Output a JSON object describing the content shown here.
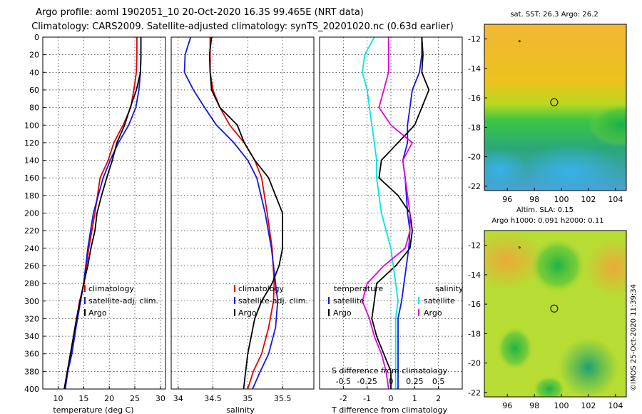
{
  "header": {
    "line1": "Argo profile: aoml 1902051_10 20-Oct-2020 16.3S 99.465E (NRT data)",
    "line2": "Climatology: CARS2009. Satellite-adjusted climatology: synTS_20201020.nc (0.63d earlier)"
  },
  "colors": {
    "climatology": "#e60000",
    "satellite": "#1515e6",
    "argo": "#000000",
    "sal_satellite": "#00e5e5",
    "sal_argo": "#e000e0"
  },
  "chart_data": [
    {
      "type": "line",
      "panel": "temperature",
      "xlabel": "temperature (deg C)",
      "ylabel": "",
      "xlim": [
        7,
        31
      ],
      "ylim": [
        400,
        0
      ],
      "xticks": [
        10,
        15,
        20,
        25,
        30
      ],
      "yticks": [
        0,
        20,
        40,
        60,
        80,
        100,
        120,
        140,
        160,
        180,
        200,
        220,
        240,
        260,
        280,
        300,
        320,
        340,
        360,
        380,
        400
      ],
      "grid": true,
      "legend": {
        "position": "lower-middle",
        "entries": [
          "climatology",
          "satellite-adj. clim.",
          "Argo"
        ]
      },
      "series": [
        {
          "name": "climatology",
          "color": "#e60000",
          "x": [
            25.4,
            25.4,
            25.3,
            24.8,
            24.2,
            22.7,
            20.9,
            19.8,
            18.2,
            17.2,
            16.0,
            15.1,
            14.2,
            13.3,
            12.5,
            11.8,
            11.2
          ],
          "y": [
            0,
            20,
            40,
            60,
            80,
            100,
            120,
            140,
            160,
            200,
            240,
            280,
            300,
            330,
            360,
            380,
            400
          ]
        },
        {
          "name": "satellite-adj. clim.",
          "color": "#1515e6",
          "x": [
            26.2,
            26.2,
            26.1,
            25.8,
            25.2,
            23.8,
            21.8,
            20.2,
            18.8,
            16.9,
            15.8,
            15.0,
            14.4,
            13.5,
            12.7,
            11.9,
            11.4
          ],
          "y": [
            0,
            20,
            40,
            60,
            80,
            100,
            120,
            140,
            160,
            200,
            240,
            280,
            300,
            330,
            360,
            380,
            400
          ]
        },
        {
          "name": "Argo",
          "color": "#000000",
          "x": [
            26.2,
            26.2,
            26.1,
            25.3,
            24.1,
            23.0,
            21.5,
            20.6,
            19.5,
            18.5,
            17.6,
            17.2,
            16.4,
            15.8,
            15.0,
            14.3,
            13.6,
            13.0,
            12.4,
            11.8,
            11.2
          ],
          "y": [
            0,
            20,
            40,
            60,
            80,
            100,
            120,
            140,
            160,
            180,
            200,
            220,
            240,
            260,
            280,
            300,
            320,
            340,
            360,
            380,
            400
          ]
        }
      ]
    },
    {
      "type": "line",
      "panel": "salinity",
      "xlabel": "salinity",
      "ylabel": "",
      "xlim": [
        33.9,
        35.95
      ],
      "ylim": [
        400,
        0
      ],
      "xticks": [
        34,
        34.5,
        35,
        35.5
      ],
      "xticklabels": [
        "34",
        "34.5",
        "35",
        "35.5"
      ],
      "yticks": [
        0,
        20,
        40,
        60,
        80,
        100,
        120,
        140,
        160,
        180,
        200,
        220,
        240,
        260,
        280,
        300,
        320,
        340,
        360,
        380,
        400
      ],
      "grid": true,
      "legend": {
        "position": "lower-middle",
        "entries": [
          "climatology",
          "satellite-adj. clim.",
          "Argo"
        ]
      },
      "series": [
        {
          "name": "climatology",
          "color": "#e60000",
          "x": [
            34.46,
            34.46,
            34.46,
            34.5,
            34.6,
            34.74,
            34.95,
            35.1,
            35.2,
            35.28,
            35.35,
            35.38,
            35.37,
            35.3,
            35.2,
            35.08,
            35.0
          ],
          "y": [
            0,
            20,
            40,
            60,
            80,
            100,
            120,
            140,
            160,
            200,
            240,
            280,
            300,
            330,
            360,
            380,
            400
          ]
        },
        {
          "name": "satellite-adj. clim.",
          "color": "#1515e6",
          "x": [
            34.18,
            34.1,
            34.09,
            34.22,
            34.38,
            34.55,
            34.8,
            35.0,
            35.13,
            35.25,
            35.34,
            35.4,
            35.43,
            35.4,
            35.3,
            35.18,
            35.07
          ],
          "y": [
            0,
            20,
            40,
            60,
            80,
            100,
            120,
            140,
            160,
            200,
            240,
            280,
            300,
            330,
            360,
            380,
            400
          ]
        },
        {
          "name": "Argo",
          "color": "#000000",
          "x": [
            34.48,
            34.45,
            34.46,
            34.48,
            34.6,
            34.85,
            34.95,
            35.1,
            35.3,
            35.4,
            35.5,
            35.5,
            35.5,
            35.45,
            35.35,
            35.2,
            35.1,
            35.05,
            35.0,
            34.97,
            34.94
          ],
          "y": [
            0,
            20,
            40,
            60,
            80,
            100,
            120,
            140,
            160,
            180,
            200,
            220,
            240,
            260,
            280,
            300,
            320,
            340,
            360,
            380,
            400
          ]
        }
      ]
    },
    {
      "type": "line",
      "panel": "difference",
      "xlabel": "T difference from climatology",
      "x2label": "S difference from climatology",
      "ylabel": "",
      "xlim": [
        -3,
        3
      ],
      "ylim": [
        400,
        0
      ],
      "xticks": [
        -2,
        -1,
        0,
        1,
        2
      ],
      "x2ticks": [
        -0.5,
        -0.25,
        0,
        0.25,
        0.5
      ],
      "x2ticklabels": [
        "-0.5",
        "-0.25",
        "0",
        "0.25",
        "0.5"
      ],
      "yticks": [
        0,
        20,
        40,
        60,
        80,
        100,
        120,
        140,
        160,
        180,
        200,
        220,
        240,
        260,
        280,
        300,
        320,
        340,
        360,
        380,
        400
      ],
      "grid": true,
      "legend_temperature": {
        "title": "temperature",
        "position": "lower-left",
        "entries": [
          "satellite",
          "Argo"
        ]
      },
      "legend_salinity": {
        "title": "salinity",
        "position": "lower-right",
        "entries": [
          "satellite",
          "Argo"
        ]
      },
      "series": [
        {
          "name": "T satellite",
          "color": "#1515e6",
          "x": [
            1.3,
            1.3,
            1.2,
            0.9,
            0.8,
            0.7,
            0.7,
            0.5,
            0.6,
            0.65,
            0.7,
            0.8,
            0.75,
            0.65,
            0.55,
            0.45,
            0.3,
            0.3,
            0.3,
            0.3,
            0.3
          ],
          "y": [
            0,
            20,
            40,
            60,
            80,
            100,
            120,
            140,
            160,
            180,
            200,
            220,
            240,
            260,
            280,
            300,
            320,
            340,
            360,
            380,
            400
          ]
        },
        {
          "name": "T Argo",
          "color": "#000000",
          "x": [
            1.3,
            1.35,
            1.3,
            1.6,
            1.3,
            1.0,
            0.3,
            -0.4,
            -0.5,
            0.3,
            0.8,
            0.9,
            0.8,
            0.2,
            -0.6,
            -0.7,
            -0.8,
            -0.6,
            -0.3,
            0.0,
            0.0
          ],
          "y": [
            0,
            20,
            40,
            60,
            80,
            100,
            120,
            140,
            160,
            180,
            200,
            220,
            240,
            260,
            280,
            300,
            320,
            340,
            360,
            380,
            400
          ]
        },
        {
          "name": "S satellite",
          "color": "#00e5e5",
          "x": [
            -0.7,
            -1.1,
            -1.2,
            -1.0,
            -0.9,
            -0.8,
            -0.7,
            -0.6,
            -0.6,
            -0.5,
            -0.4,
            -0.2,
            0.0,
            0.1,
            0.2,
            0.3,
            0.2,
            0.2,
            0.2,
            0.2,
            0.2
          ],
          "y": [
            0,
            20,
            40,
            60,
            80,
            100,
            120,
            140,
            160,
            180,
            200,
            220,
            240,
            260,
            280,
            300,
            320,
            340,
            360,
            380,
            400
          ]
        },
        {
          "name": "S Argo",
          "color": "#e000e0",
          "x": [
            -0.1,
            -0.1,
            -0.1,
            -0.3,
            -0.5,
            0.0,
            0.9,
            0.5,
            0.6,
            0.7,
            0.8,
            0.8,
            0.6,
            -0.3,
            -1.0,
            -1.2,
            -0.9,
            -0.7,
            -0.4,
            -0.2,
            -0.1
          ],
          "y": [
            0,
            20,
            40,
            60,
            80,
            100,
            120,
            140,
            160,
            180,
            200,
            220,
            240,
            260,
            280,
            300,
            320,
            340,
            360,
            380,
            400
          ]
        }
      ]
    },
    {
      "type": "heatmap",
      "panel": "sst-map",
      "title": "sat. SST: 26.3 Argo: 26.2",
      "xticks": [
        96,
        98,
        100,
        102,
        104
      ],
      "yticks": [
        -12,
        -14,
        -16,
        -18,
        -20,
        -22
      ],
      "xlim": [
        94.3,
        104.8
      ],
      "ylim": [
        -22.3,
        -11.0
      ],
      "marker": {
        "lon": 99.465,
        "lat": -16.3
      }
    },
    {
      "type": "heatmap",
      "panel": "sla-map",
      "title": "Altim. SLA: 0.15",
      "subtitle": "Argo h1000: 0.091 h2000: 0.11",
      "xticks": [
        96,
        98,
        100,
        102,
        104
      ],
      "yticks": [
        -12,
        -14,
        -16,
        -18,
        -20,
        -22
      ],
      "xlim": [
        94.3,
        104.8
      ],
      "ylim": [
        -22.3,
        -11.0
      ],
      "marker": {
        "lon": 99.465,
        "lat": -16.3
      }
    }
  ],
  "legends": {
    "clim": "climatology",
    "sat": "satellite-adj. clim.",
    "argo": "Argo",
    "t_title": "temperature",
    "s_title": "salinity",
    "satellite": "satellite",
    "argo2": "Argo"
  },
  "footer": {
    "credit": "©IMOS 25-Oct-2020 11:39:34"
  }
}
